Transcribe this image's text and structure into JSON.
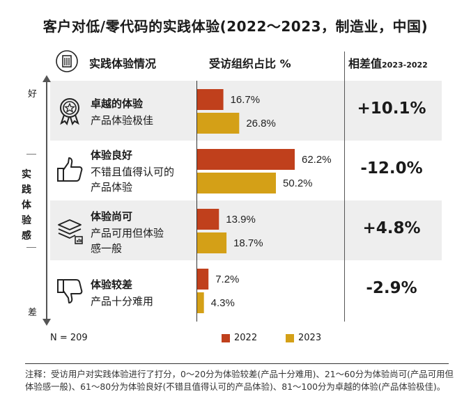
{
  "title": "客户对低/零代码的实践体验(2022～2023，制造业，中国)",
  "headers": {
    "category": "实践体验情况",
    "share": "受访组织占比 %",
    "diff": "相差值",
    "diff_sub": "2023-2022"
  },
  "axis": {
    "good": "好",
    "bad": "差",
    "label": "实践体验感"
  },
  "colors": {
    "y2022": "#c0401c",
    "y2023": "#d4a017",
    "row_bg": "#eeeeee"
  },
  "chart_data": {
    "type": "bar",
    "orientation": "horizontal",
    "categories": [
      "卓越的体验",
      "体验良好",
      "体验尚可",
      "体验较差"
    ],
    "series": [
      {
        "name": "2022",
        "values": [
          16.7,
          62.2,
          13.9,
          7.2
        ],
        "labels": [
          "16.7%",
          "62.2%",
          "13.9%",
          "7.2%"
        ]
      },
      {
        "name": "2023",
        "values": [
          26.8,
          50.2,
          18.7,
          4.3
        ],
        "labels": [
          "26.8%",
          "50.2%",
          "18.7%",
          "4.3%"
        ]
      }
    ],
    "xlim": [
      0,
      70
    ],
    "differences": [
      "+10.1%",
      "-12.0%",
      "+4.8%",
      "-2.9%"
    ]
  },
  "rows": [
    {
      "title": "卓越的体验",
      "desc": [
        "产品体验极佳"
      ],
      "icon": "award-ribbon-icon",
      "diff": "+10.1%"
    },
    {
      "title": "体验良好",
      "desc": [
        "不错且值得认可的",
        "产品体验"
      ],
      "icon": "thumbs-up-icon",
      "diff": "-12.0%"
    },
    {
      "title": "体验尚可",
      "desc": [
        "产品可用但体验",
        "感一般"
      ],
      "icon": "layers-chart-icon",
      "diff": "+4.8%"
    },
    {
      "title": "体验较差",
      "desc": [
        "产品十分难用"
      ],
      "icon": "thumbs-down-icon",
      "diff": "-2.9%"
    }
  ],
  "footer": {
    "n": "N = 209",
    "legend_2022": "2022",
    "legend_2023": "2023"
  },
  "note": "注释：受访用户对实践体验进行了打分，0～20分为体验较差(产品十分难用)、21～60分为体验尚可(产品可用但体验感一般)、61～80分为体验良好(不错且值得认可的产品体验)、81～100分为卓越的体验(产品体验极佳)。"
}
